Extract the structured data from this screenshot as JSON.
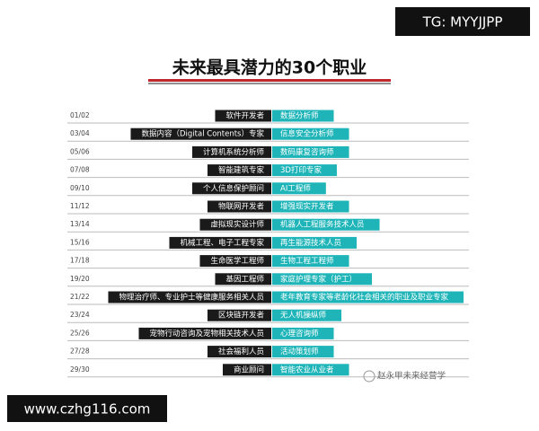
{
  "header": {
    "badge": "TG: MYYJJPP",
    "title": "未来最具潜力的30个职业"
  },
  "rows": [
    {
      "rank": "01/02",
      "left": "软件开发者",
      "right": "数据分析师"
    },
    {
      "rank": "03/04",
      "left": "数据内容（Digital Contents）专家",
      "right": "信息安全分析师"
    },
    {
      "rank": "05/06",
      "left": "计算机系统分析师",
      "right": "数码康复咨询师"
    },
    {
      "rank": "07/08",
      "left": "智能建筑专家",
      "right": "3D打印专家"
    },
    {
      "rank": "09/10",
      "left": "个人信息保护顾问",
      "right": "AI工程师"
    },
    {
      "rank": "11/12",
      "left": "物联网开发者",
      "right": "增强现实开发者"
    },
    {
      "rank": "13/14",
      "left": "虚拟现实设计师",
      "right": "机器人工程服务技术人员"
    },
    {
      "rank": "15/16",
      "left": "机械工程、电子工程专家",
      "right": "再生能源技术人员"
    },
    {
      "rank": "17/18",
      "left": "生命医学工程师",
      "right": "生物工程工程师"
    },
    {
      "rank": "19/20",
      "left": "基因工程师",
      "right": "家庭护理专家（护工）"
    },
    {
      "rank": "21/22",
      "left": "物理治疗师、专业护士等健康服务相关人员",
      "right": "老年教育专家等老龄化社会相关的职业及职业专家"
    },
    {
      "rank": "23/24",
      "left": "区块链开发者",
      "right": "无人机操纵师"
    },
    {
      "rank": "25/26",
      "left": "宠物行动咨询及宠物相关技术人员",
      "right": "心理咨询师"
    },
    {
      "rank": "27/28",
      "left": "社会福利人员",
      "right": "活动策划师"
    },
    {
      "rank": "29/30",
      "left": "商业顾问",
      "right": "智能农业从业者"
    }
  ],
  "footer": {
    "website": "www.czhg116.com",
    "watermark": "赵永甲未来经营学"
  }
}
